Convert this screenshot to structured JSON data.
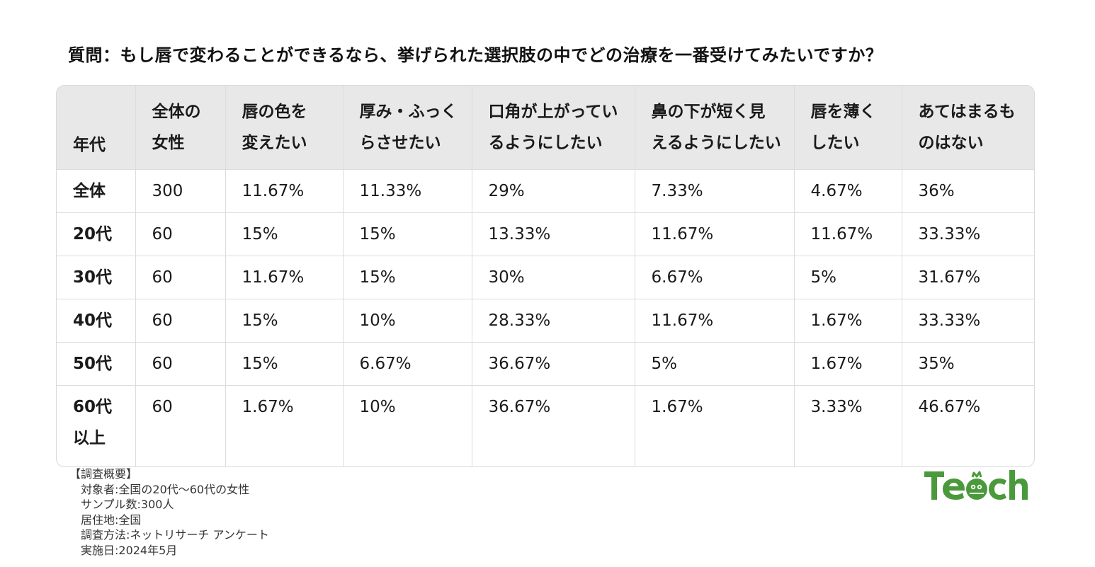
{
  "title": "質問：もし唇で変わることができるなら、挙げられた選択肢の中でどの治療を一番受けてみたいですか？",
  "table": {
    "headers": [
      [
        "",
        "年代"
      ],
      [
        "全体の",
        "女性"
      ],
      [
        "唇の色を",
        "変えたい"
      ],
      [
        "厚み・ふっく",
        "らさせたい"
      ],
      [
        "口角が上がってい",
        "るようにしたい"
      ],
      [
        "鼻の下が短く見",
        "えるようにしたい"
      ],
      [
        "唇を薄く",
        "したい"
      ],
      [
        "あてはまるも",
        "のはない"
      ]
    ],
    "rows": [
      {
        "label": [
          "全体"
        ],
        "cells": [
          "300",
          "11.67%",
          "11.33%",
          "29%",
          "7.33%",
          "4.67%",
          "36%"
        ]
      },
      {
        "label": [
          "20代"
        ],
        "cells": [
          "60",
          "15%",
          "15%",
          "13.33%",
          "11.67%",
          "11.67%",
          "33.33%"
        ]
      },
      {
        "label": [
          "30代"
        ],
        "cells": [
          "60",
          "11.67%",
          "15%",
          "30%",
          "6.67%",
          "5%",
          "31.67%"
        ]
      },
      {
        "label": [
          "40代"
        ],
        "cells": [
          "60",
          "15%",
          "10%",
          "28.33%",
          "11.67%",
          "1.67%",
          "33.33%"
        ]
      },
      {
        "label": [
          "50代"
        ],
        "cells": [
          "60",
          "15%",
          "6.67%",
          "36.67%",
          "5%",
          "1.67%",
          "35%"
        ]
      },
      {
        "label": [
          "60代",
          "以上"
        ],
        "cells": [
          "60",
          "1.67%",
          "10%",
          "36.67%",
          "1.67%",
          "3.33%",
          "46.67%"
        ]
      }
    ]
  },
  "footer": {
    "heading": "【調査概要】",
    "lines": [
      "対象者:全国の20代〜60代の女性",
      "サンプル数:300人",
      "居住地:全国",
      "調査方法:ネットリサーチ アンケート",
      "実施日:2024年5月"
    ]
  },
  "logo": {
    "text": "Teech",
    "color": "#4a9a3c"
  }
}
